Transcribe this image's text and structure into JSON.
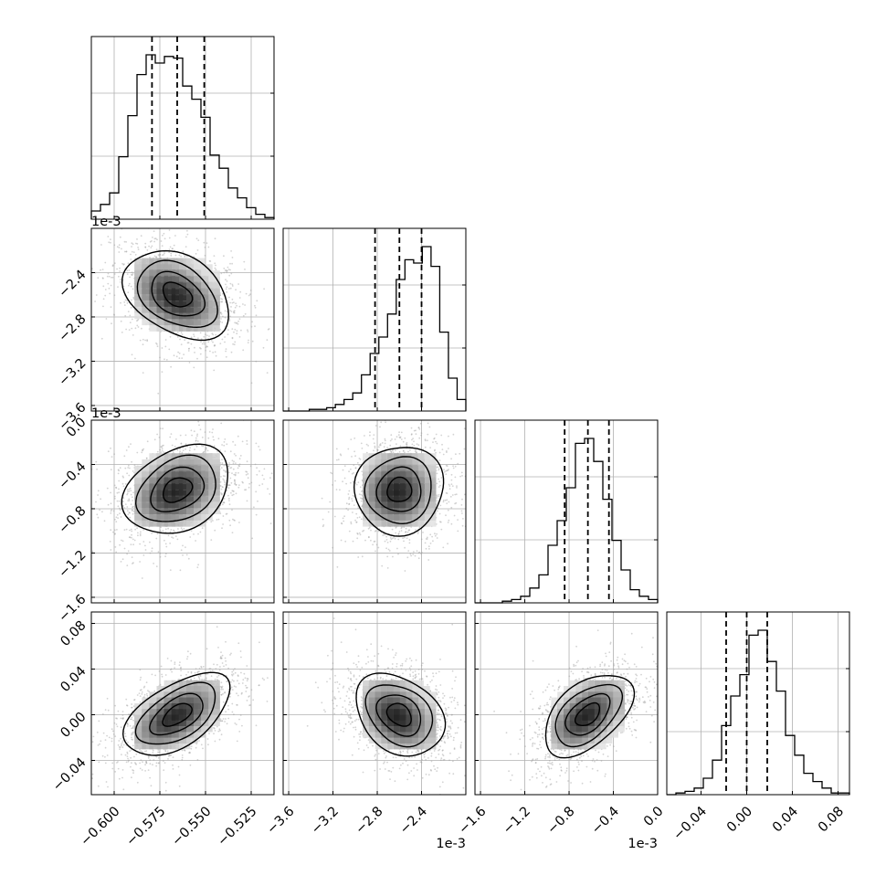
{
  "chart_data": {
    "type": "corner",
    "n_params": 4,
    "grid": true,
    "params": [
      {
        "range": [
          -0.6125,
          -0.5125
        ],
        "ticks": [
          "-0.600",
          "-0.575",
          "-0.550",
          "-0.525"
        ],
        "tick_values": [
          -0.6,
          -0.575,
          -0.55,
          -0.525
        ],
        "offset": "",
        "quantiles": [
          -0.5793,
          -0.5655,
          -0.5507
        ],
        "mean": -0.5655,
        "sd": 0.0145,
        "hist": [
          0.05,
          0.09,
          0.16,
          0.38,
          0.63,
          0.88,
          1.0,
          0.95,
          0.99,
          0.98,
          0.81,
          0.73,
          0.62,
          0.39,
          0.31,
          0.19,
          0.13,
          0.07,
          0.03,
          0.01
        ]
      },
      {
        "range": [
          -3.65,
          -2.0
        ],
        "ticks": [
          "-3.6",
          "-3.2",
          "-2.8",
          "-2.4"
        ],
        "tick_values": [
          -3.6,
          -3.2,
          -2.8,
          -2.4
        ],
        "offset": "1e-3",
        "quantiles": [
          -2.82,
          -2.6,
          -2.4
        ],
        "mean": -2.6,
        "sd": 0.2,
        "hist": [
          0.0,
          0.0,
          0.0,
          0.01,
          0.01,
          0.02,
          0.04,
          0.07,
          0.11,
          0.22,
          0.35,
          0.45,
          0.59,
          0.8,
          0.92,
          0.9,
          1.0,
          0.88,
          0.48,
          0.2,
          0.07
        ]
      },
      {
        "range": [
          -1.65,
          0.0
        ],
        "ticks": [
          "-1.6",
          "-1.2",
          "-0.8",
          "-0.4",
          "0.0"
        ],
        "tick_values": [
          -1.6,
          -1.2,
          -0.8,
          -0.4,
          0.0
        ],
        "offset": "1e-3",
        "quantiles": [
          -0.84,
          -0.63,
          -0.44
        ],
        "mean": -0.63,
        "sd": 0.2,
        "hist": [
          0.0,
          0.0,
          0.0,
          0.01,
          0.02,
          0.04,
          0.09,
          0.17,
          0.35,
          0.5,
          0.7,
          0.97,
          1.0,
          0.86,
          0.63,
          0.38,
          0.2,
          0.08,
          0.04,
          0.02
        ]
      },
      {
        "range": [
          -0.07,
          0.09
        ],
        "ticks": [
          "-0.04",
          "0.00",
          "0.04",
          "0.08"
        ],
        "tick_values": [
          -0.04,
          0.0,
          0.04,
          0.08
        ],
        "offset": "",
        "quantiles": [
          -0.018,
          0.0,
          0.018
        ],
        "mean": 0.0,
        "sd": 0.018,
        "hist": [
          0.0,
          0.01,
          0.02,
          0.04,
          0.1,
          0.21,
          0.42,
          0.6,
          0.73,
          0.97,
          1.0,
          0.81,
          0.63,
          0.36,
          0.24,
          0.13,
          0.08,
          0.04,
          0.01,
          0.01
        ]
      }
    ],
    "correlations": [
      [
        1,
        -0.35,
        0.3,
        0.55
      ],
      [
        -0.35,
        1,
        0.05,
        -0.3
      ],
      [
        0.3,
        0.05,
        1,
        0.5
      ],
      [
        0.55,
        -0.3,
        0.5,
        1
      ]
    ],
    "hist_color": "#000000",
    "scatter_color": "#9e9e9e",
    "grid_color": "#b0b0b0"
  }
}
